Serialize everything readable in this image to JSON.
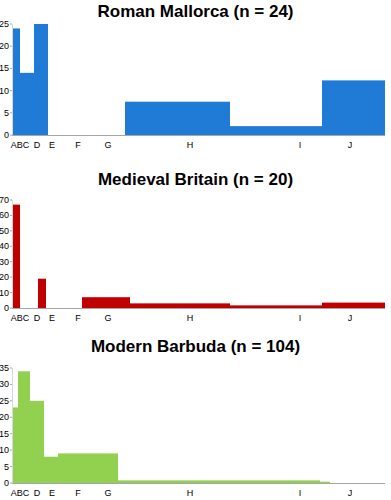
{
  "chart_data": [
    {
      "type": "histogram",
      "title": "Roman Mallorca (n = 24)",
      "color": "#1f7bd6",
      "bins": [
        0,
        8,
        22,
        36,
        113,
        218,
        310,
        373
      ],
      "values": [
        24,
        14,
        25,
        0,
        7.5,
        2,
        12.3
      ],
      "xlim": [
        0,
        373
      ],
      "xticks": [
        {
          "value": 8,
          "label": "ABC"
        },
        {
          "value": 25,
          "label": "D"
        },
        {
          "value": 40,
          "label": "E"
        },
        {
          "value": 66,
          "label": "F"
        },
        {
          "value": 96,
          "label": "G"
        },
        {
          "value": 178,
          "label": "H"
        },
        {
          "value": 288,
          "label": "I"
        },
        {
          "value": 338,
          "label": "J"
        }
      ],
      "ylim": [
        0,
        25
      ],
      "yticks": [
        0,
        5,
        10,
        15,
        20,
        25
      ]
    },
    {
      "type": "histogram",
      "title": "Medieval Britain (n = 20)",
      "color": "#c00000",
      "bins": [
        0,
        8,
        26,
        34,
        70,
        118,
        218,
        310,
        373
      ],
      "values": [
        67,
        0,
        19,
        0,
        7,
        3,
        1.7,
        3.5
      ],
      "xlim": [
        0,
        373
      ],
      "xticks": [
        {
          "value": 8,
          "label": "ABC"
        },
        {
          "value": 25,
          "label": "D"
        },
        {
          "value": 40,
          "label": "E"
        },
        {
          "value": 66,
          "label": "F"
        },
        {
          "value": 96,
          "label": "G"
        },
        {
          "value": 178,
          "label": "H"
        },
        {
          "value": 288,
          "label": "I"
        },
        {
          "value": 338,
          "label": "J"
        }
      ],
      "ylim": [
        0,
        70
      ],
      "yticks": [
        0,
        10,
        20,
        30,
        40,
        50,
        60,
        70
      ]
    },
    {
      "type": "histogram",
      "title": "Modern Barbuda (n = 104)",
      "color": "#92d050",
      "bins": [
        0,
        6,
        18,
        32,
        46,
        106,
        308,
        318
      ],
      "values": [
        23,
        34,
        25,
        8,
        9,
        0.8,
        0.4
      ],
      "xlim": [
        0,
        373
      ],
      "xticks": [
        {
          "value": 8,
          "label": "ABC"
        },
        {
          "value": 25,
          "label": "D"
        },
        {
          "value": 40,
          "label": "E"
        },
        {
          "value": 66,
          "label": "F"
        },
        {
          "value": 96,
          "label": "G"
        },
        {
          "value": 178,
          "label": "H"
        },
        {
          "value": 288,
          "label": "I"
        },
        {
          "value": 338,
          "label": "J"
        }
      ],
      "ylim": [
        0,
        35
      ],
      "yticks": [
        0,
        5,
        10,
        15,
        20,
        25,
        30,
        35
      ]
    }
  ]
}
